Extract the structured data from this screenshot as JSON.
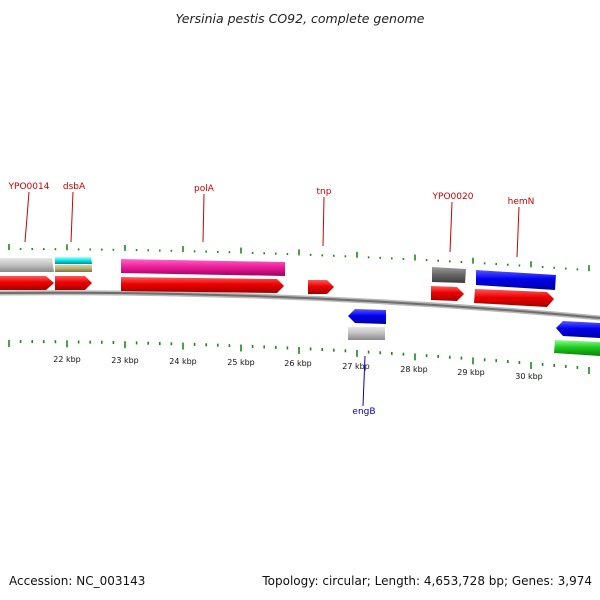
{
  "title": "Yersinia pestis CO92, complete genome",
  "footer": {
    "accession": "Accession: NC_003143",
    "summary": "Topology: circular; Length: 4,653,728 bp; Genes: 3,974"
  },
  "colors": {
    "backbone": "#8a8a8a",
    "tick": "#1a8a1a",
    "label_forward": "#cc0000",
    "label_reverse": "#0000cc"
  },
  "kbp_ticks": [
    "22 kbp",
    "23 kbp",
    "24 kbp",
    "25 kbp",
    "26 kbp",
    "27 kbp",
    "28 kbp",
    "29 kbp",
    "30 kbp"
  ],
  "gene_labels": [
    {
      "name": "YPO0014",
      "strand": "forward"
    },
    {
      "name": "dsbA",
      "strand": "forward"
    },
    {
      "name": "polA",
      "strand": "forward"
    },
    {
      "name": "tnp",
      "strand": "forward"
    },
    {
      "name": "YPO0020",
      "strand": "forward"
    },
    {
      "name": "hemN",
      "strand": "forward"
    },
    {
      "name": "engB",
      "strand": "reverse"
    }
  ]
}
